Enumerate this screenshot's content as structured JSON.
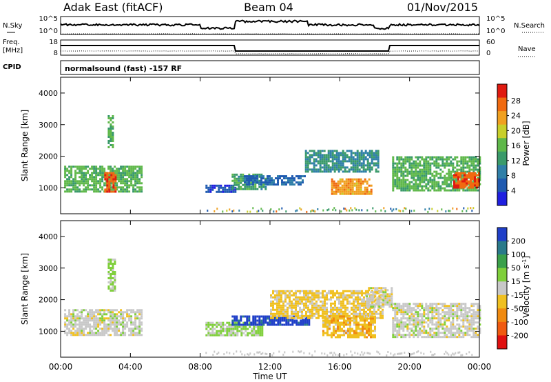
{
  "header": {
    "station": "Adak East (fitACF)",
    "beam": "Beam 04",
    "date": "01/Nov/2015"
  },
  "strips": {
    "nsky_label": "N.Sky",
    "nsearch_label": "N.Search",
    "freq_label_top": "Freq.",
    "freq_label_bottom": "[MHz]",
    "nave_label": "Nave",
    "cpid_label": "CPID",
    "cpid_text": "normalsound (fast) -157 RF",
    "noise_ticks_left": [
      "10^5",
      "10^0"
    ],
    "noise_ticks_right": [
      "10^5",
      "10^0"
    ],
    "freq_ticks": [
      "18",
      "8"
    ],
    "nave_ticks": [
      "60",
      "0"
    ]
  },
  "colors": {
    "power_scale": [
      "#1f1fe0",
      "#1f5ab0",
      "#2f7fa8",
      "#3a9a6a",
      "#5fb84a",
      "#c8cf2a",
      "#f0a020",
      "#f06a10",
      "#e01a10"
    ],
    "velocity_scale": [
      "#1f3fc8",
      "#2a7a8a",
      "#3aa04a",
      "#7fcf3a",
      "#c8c8c8",
      "#f0c020",
      "#f08a10",
      "#f05a10",
      "#e01010"
    ]
  },
  "chart_data": [
    {
      "type": "heatmap",
      "title": "",
      "xlabel": "Time UT",
      "ylabel": "Slant Range [km]",
      "xlim": [
        "00:00",
        "24:00"
      ],
      "ylim": [
        180,
        4500
      ],
      "x_ticks": [
        "00:00",
        "04:00",
        "08:00",
        "12:00",
        "16:00",
        "20:00",
        "00:00"
      ],
      "y_ticks": [
        1000,
        2000,
        3000,
        4000
      ],
      "colorbar": {
        "label": "Power [dB]",
        "ticks": [
          "4",
          "8",
          "12",
          "16",
          "20",
          "24",
          "28"
        ],
        "range": [
          0,
          30
        ]
      },
      "regions": [
        {
          "t_start": 0.2,
          "t_end": 4.7,
          "r_low": 850,
          "r_high": 1700,
          "value": 14
        },
        {
          "t_start": 2.5,
          "t_end": 3.1,
          "r_low": 900,
          "r_high": 1500,
          "value": 26
        },
        {
          "t_start": 2.7,
          "t_end": 3.0,
          "r_low": 2300,
          "r_high": 3300,
          "value": 14
        },
        {
          "t_start": 8.3,
          "t_end": 10.0,
          "r_low": 900,
          "r_high": 1100,
          "value": 4
        },
        {
          "t_start": 9.8,
          "t_end": 11.8,
          "r_low": 950,
          "r_high": 1450,
          "value": 12
        },
        {
          "t_start": 10.5,
          "t_end": 14.0,
          "r_low": 1100,
          "r_high": 1400,
          "value": 6
        },
        {
          "t_start": 14.0,
          "t_end": 18.2,
          "r_low": 1500,
          "r_high": 2200,
          "value": 10
        },
        {
          "t_start": 15.5,
          "t_end": 17.8,
          "r_low": 800,
          "r_high": 1300,
          "value": 22
        },
        {
          "t_start": 19.0,
          "t_end": 24.0,
          "r_low": 900,
          "r_high": 2000,
          "value": 14
        },
        {
          "t_start": 22.5,
          "t_end": 24.0,
          "r_low": 1000,
          "r_high": 1500,
          "value": 26
        }
      ]
    },
    {
      "type": "heatmap",
      "title": "",
      "xlabel": "Time UT",
      "ylabel": "Slant Range [km]",
      "xlim": [
        "00:00",
        "24:00"
      ],
      "ylim": [
        180,
        4500
      ],
      "x_ticks": [
        "00:00",
        "04:00",
        "08:00",
        "12:00",
        "16:00",
        "20:00",
        "00:00"
      ],
      "y_ticks": [
        1000,
        2000,
        3000,
        4000
      ],
      "colorbar": {
        "label": "Velocity [m s^-1]",
        "ticks": [
          "200",
          "100",
          "50",
          "15",
          "-15",
          "-50",
          "-100",
          "-200"
        ],
        "range": [
          -250,
          250
        ]
      },
      "regions": [
        {
          "t_start": 0.2,
          "t_end": 4.7,
          "r_low": 850,
          "r_high": 1700,
          "value": 0
        },
        {
          "t_start": 2.7,
          "t_end": 3.1,
          "r_low": 2300,
          "r_high": 3300,
          "value": 40
        },
        {
          "t_start": 8.3,
          "t_end": 11.5,
          "r_low": 850,
          "r_high": 1300,
          "value": 40
        },
        {
          "t_start": 9.8,
          "t_end": 14.2,
          "r_low": 1200,
          "r_high": 1500,
          "value": 220
        },
        {
          "t_start": 12.0,
          "t_end": 18.5,
          "r_low": 1400,
          "r_high": 2300,
          "value": -40
        },
        {
          "t_start": 15.0,
          "t_end": 18.0,
          "r_low": 800,
          "r_high": 1500,
          "value": -60
        },
        {
          "t_start": 17.5,
          "t_end": 19.0,
          "r_low": 1800,
          "r_high": 2400,
          "value": 0
        },
        {
          "t_start": 19.0,
          "t_end": 24.0,
          "r_low": 850,
          "r_high": 1900,
          "value": 0
        }
      ]
    }
  ]
}
